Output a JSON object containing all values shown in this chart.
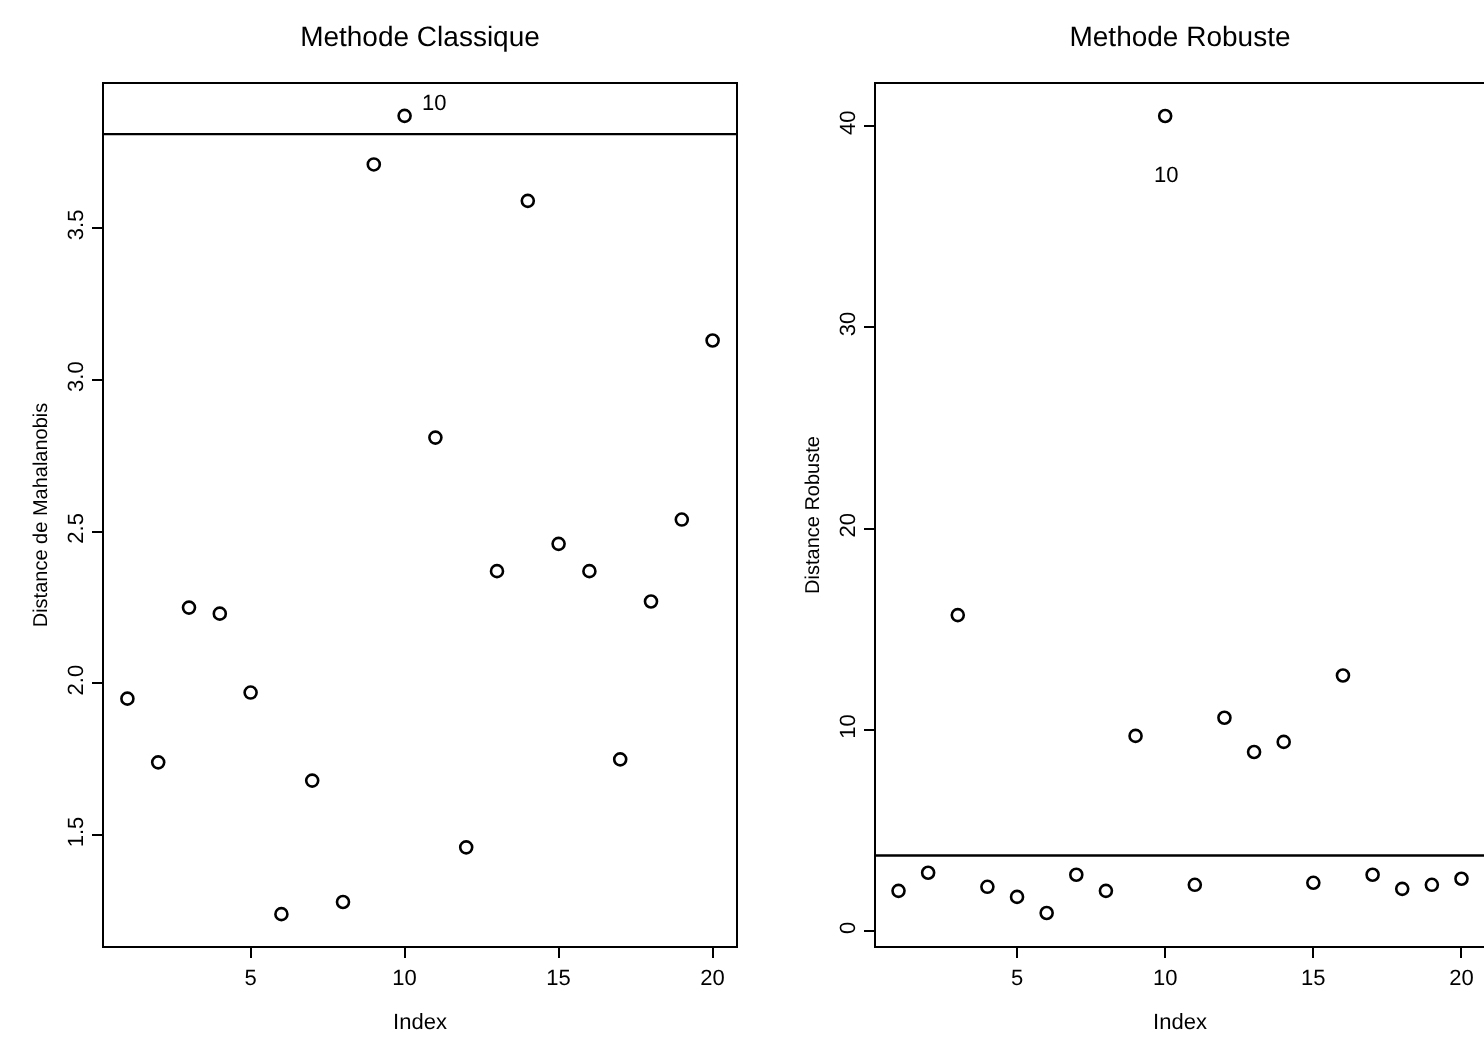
{
  "chart_data": [
    {
      "type": "scatter",
      "title": "Methode Classique",
      "xlabel": "Index",
      "ylabel": "Distance de Mahalanobis",
      "marker": "circle",
      "grid": false,
      "x": [
        1,
        2,
        3,
        4,
        5,
        6,
        7,
        8,
        9,
        10,
        11,
        12,
        13,
        14,
        15,
        16,
        17,
        18,
        19,
        20
      ],
      "series": [
        {
          "color": "#000000",
          "values": [
            1.95,
            1.74,
            2.25,
            2.23,
            1.97,
            1.24,
            1.68,
            1.28,
            3.71,
            3.87,
            2.81,
            1.46,
            2.37,
            3.59,
            2.46,
            2.37,
            1.75,
            2.27,
            2.54,
            3.13
          ]
        }
      ],
      "xlim": [
        0.24,
        20.76
      ],
      "xticks": [
        5,
        10,
        15,
        20
      ],
      "ylim": [
        1.135,
        3.975
      ],
      "yticks": [
        {
          "value": 1.5,
          "label": "1.5"
        },
        {
          "value": 2,
          "label": "2.0"
        },
        {
          "value": 2.5,
          "label": "2.5"
        },
        {
          "value": 3,
          "label": "3.0"
        },
        {
          "value": 3.5,
          "label": "3.5"
        }
      ],
      "ref_lines": [
        {
          "axis": "y",
          "value": 3.81,
          "color": "#000000"
        }
      ],
      "annotations": [
        {
          "text": "10",
          "x": 10,
          "y": 3.87
        }
      ]
    },
    {
      "type": "scatter",
      "title": "Methode Robuste",
      "xlabel": "Index",
      "ylabel": "Distance Robuste",
      "marker": "circle",
      "grid": false,
      "x": [
        1,
        2,
        3,
        4,
        5,
        6,
        7,
        8,
        9,
        10,
        11,
        12,
        13,
        14,
        15,
        16,
        17,
        18,
        19,
        20
      ],
      "series": [
        {
          "color": "#000000",
          "values": [
            2.0,
            2.9,
            15.7,
            2.2,
            1.7,
            0.9,
            2.8,
            2.0,
            9.7,
            40.5,
            2.3,
            10.6,
            8.9,
            9.4,
            2.4,
            12.7,
            2.8,
            2.1,
            2.3,
            2.6
          ]
        }
      ],
      "xlim": [
        0.24,
        20.76
      ],
      "xticks": [
        5,
        10,
        15,
        20
      ],
      "ylim": [
        -0.74,
        42.09
      ],
      "yticks": [
        0,
        10,
        20,
        30,
        40
      ],
      "ref_lines": [
        {
          "axis": "y",
          "value": 3.76,
          "color": "#000000"
        }
      ],
      "annotations": [
        {
          "text": "10",
          "x": 10,
          "y": 40.5
        }
      ]
    }
  ]
}
